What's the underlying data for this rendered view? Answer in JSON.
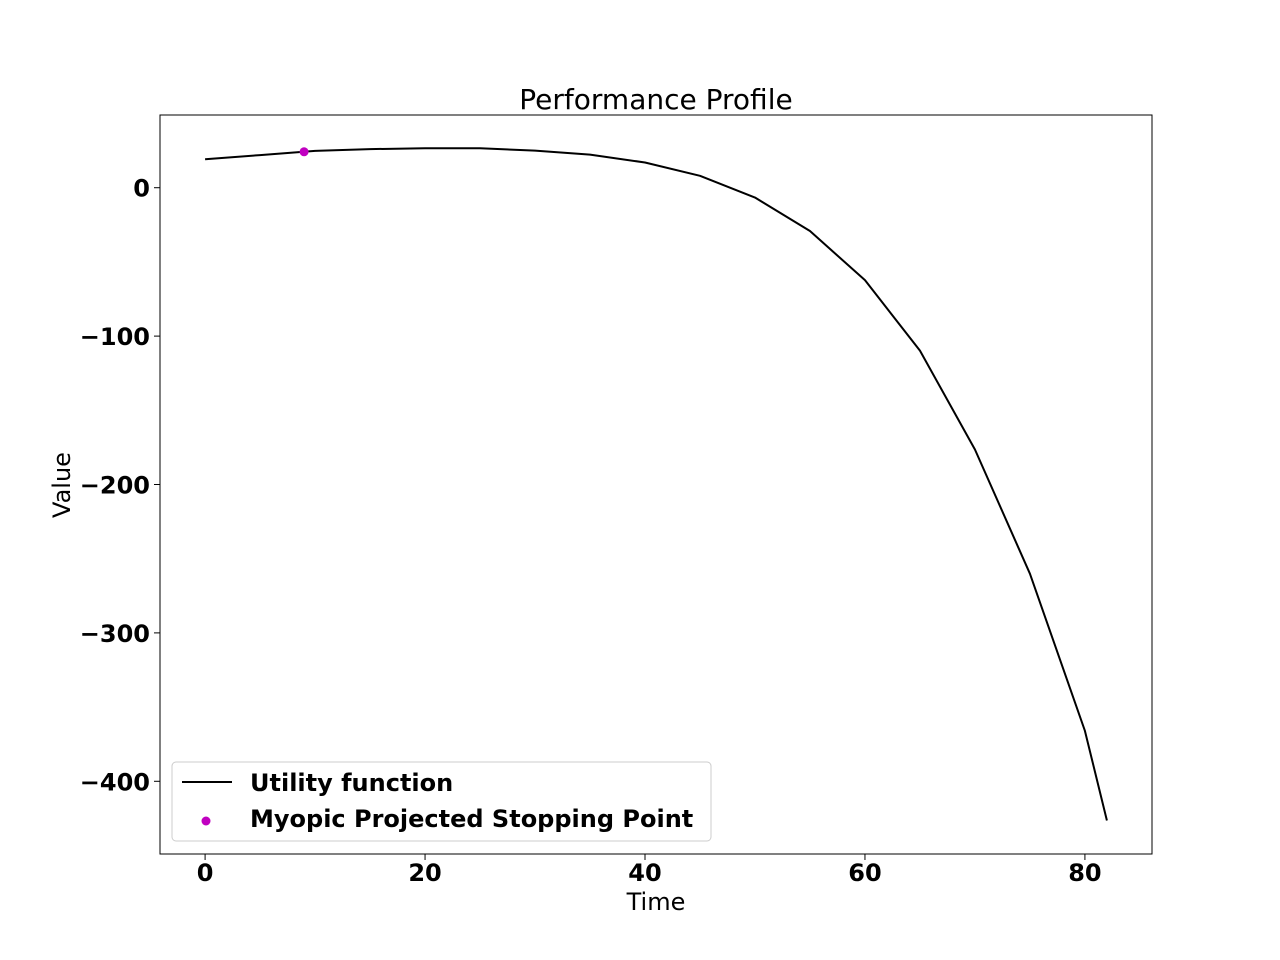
{
  "chart_data": {
    "type": "line",
    "title": "Performance Profile",
    "xlabel": "Time",
    "ylabel": "Value",
    "xlim": [
      -4.1,
      86.1
    ],
    "ylim": [
      -449,
      49
    ],
    "xticks": [
      0,
      20,
      40,
      60,
      80
    ],
    "yticks": [
      0,
      -100,
      -200,
      -300,
      -400
    ],
    "xtick_labels": [
      "0",
      "20",
      "40",
      "60",
      "80"
    ],
    "ytick_labels": [
      "0",
      "−100",
      "−200",
      "−300",
      "−400"
    ],
    "series": [
      {
        "name": "Utility function",
        "kind": "line",
        "color": "#000000",
        "x": [
          0,
          5,
          10,
          15,
          20,
          25,
          30,
          35,
          40,
          45,
          50,
          55,
          60,
          65,
          70,
          75,
          80,
          82
        ],
        "values": [
          19.2,
          22.0,
          24.8,
          26.0,
          26.6,
          26.6,
          25.0,
          22.3,
          17.0,
          8.0,
          -6.6,
          -29.2,
          -62.3,
          -109.8,
          -176.4,
          -260.1,
          -366.0,
          -426.4
        ]
      },
      {
        "name": "Myopic Projected Stopping Point",
        "kind": "scatter",
        "color": "#c000c0",
        "x": [
          9
        ],
        "values": [
          24.2
        ]
      }
    ],
    "legend": {
      "location": "lower-left",
      "entries": [
        "Utility function",
        "Myopic Projected Stopping Point"
      ]
    }
  }
}
